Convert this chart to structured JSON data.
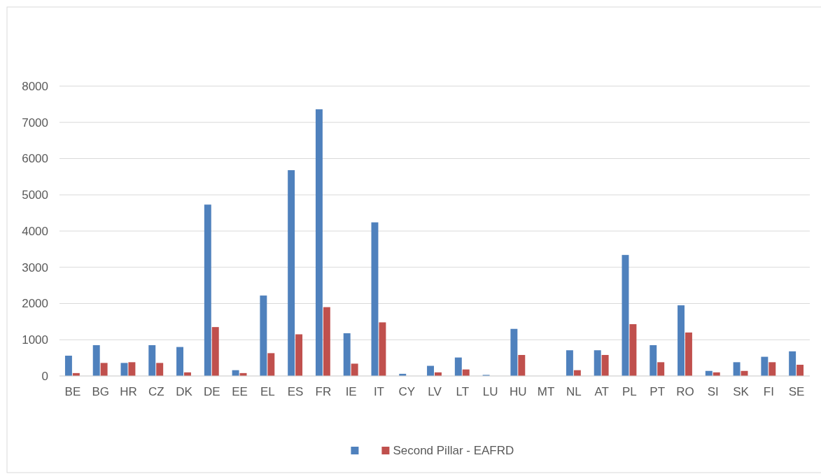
{
  "chart_data": {
    "type": "bar",
    "categories": [
      "BE",
      "BG",
      "HR",
      "CZ",
      "DK",
      "DE",
      "EE",
      "EL",
      "ES",
      "FR",
      "IE",
      "IT",
      "CY",
      "LV",
      "LT",
      "LU",
      "HU",
      "MT",
      "NL",
      "AT",
      "PL",
      "PT",
      "RO",
      "SI",
      "SK",
      "FI",
      "SE"
    ],
    "series": [
      {
        "color": "#4f81bd",
        "values": [
          560,
          850,
          360,
          850,
          800,
          4730,
          160,
          2220,
          5680,
          7360,
          1180,
          4240,
          60,
          280,
          510,
          30,
          1300,
          0,
          710,
          710,
          3340,
          850,
          1950,
          140,
          380,
          530,
          680
        ]
      },
      {
        "name": "Second Pillar - EAFRD",
        "color": "#c0504d",
        "values": [
          80,
          360,
          380,
          360,
          100,
          1350,
          80,
          630,
          1150,
          1900,
          340,
          1480,
          0,
          100,
          180,
          0,
          580,
          0,
          160,
          580,
          1430,
          380,
          1200,
          100,
          140,
          380,
          310
        ]
      }
    ],
    "ylim": [
      0,
      8000
    ],
    "yticks": [
      0,
      1000,
      2000,
      3000,
      4000,
      5000,
      6000,
      7000,
      8000
    ],
    "grid": "y",
    "legend": "bottom"
  }
}
